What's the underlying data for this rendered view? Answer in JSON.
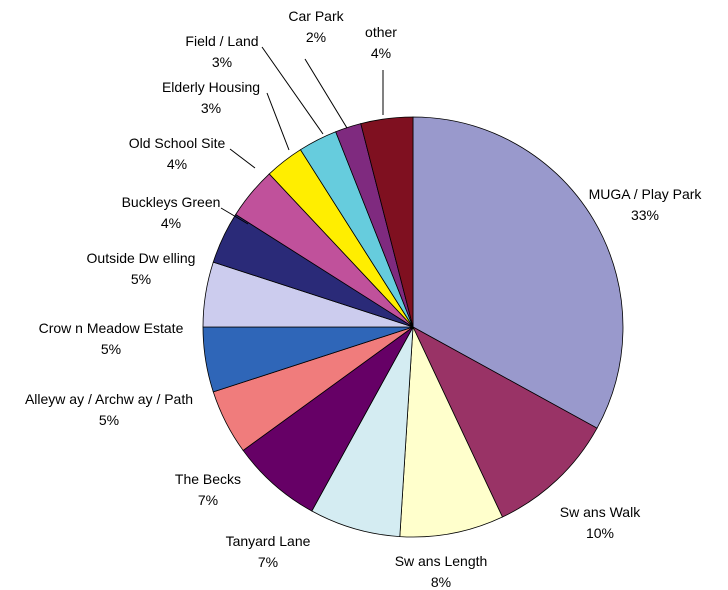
{
  "chart_data": {
    "type": "pie",
    "title": "",
    "slices": [
      {
        "label": "MUGA / Play Park",
        "value": 33,
        "display": "33%",
        "color": "#9999cc"
      },
      {
        "label": "Sw ans Walk",
        "value": 10,
        "display": "10%",
        "color": "#993366"
      },
      {
        "label": "Sw ans Length",
        "value": 8,
        "display": "8%",
        "color": "#ffffcc"
      },
      {
        "label": "Tanyard Lane",
        "value": 7,
        "display": "7%",
        "color": "#d4ecf2"
      },
      {
        "label": "The Becks",
        "value": 7,
        "display": "7%",
        "color": "#660066"
      },
      {
        "label": "Alleyw ay / Archw ay / Path",
        "value": 5,
        "display": "5%",
        "color": "#f07c7c"
      },
      {
        "label": "Crow n Meadow Estate",
        "value": 5,
        "display": "5%",
        "color": "#2f66b8"
      },
      {
        "label": "Outside Dw elling",
        "value": 5,
        "display": "5%",
        "color": "#ccccee"
      },
      {
        "label": "Buckleys Green",
        "value": 4,
        "display": "4%",
        "color": "#2a2a78"
      },
      {
        "label": "Old School Site",
        "value": 4,
        "display": "4%",
        "color": "#c0519b"
      },
      {
        "label": "Elderly Housing",
        "value": 3,
        "display": "3%",
        "color": "#ffee00"
      },
      {
        "label": "Field / Land",
        "value": 3,
        "display": "3%",
        "color": "#66ccdd"
      },
      {
        "label": "Car Park",
        "value": 2,
        "display": "2%",
        "color": "#7f2a7f"
      },
      {
        "label": "other",
        "value": 4,
        "display": "4%",
        "color": "#7f1020"
      }
    ]
  }
}
